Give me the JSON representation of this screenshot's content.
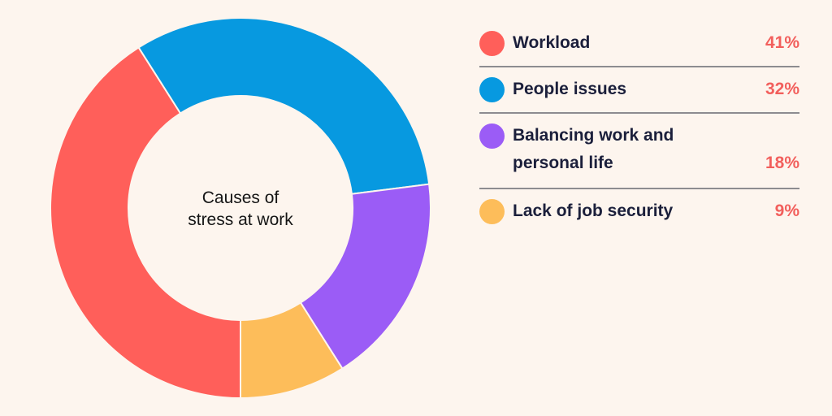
{
  "chart_data": {
    "type": "pie",
    "style": "donut",
    "title": "Causes of stress at work",
    "categories": [
      "Workload",
      "People issues",
      "Balancing work and personal life",
      "Lack of job security"
    ],
    "values": [
      41,
      32,
      18,
      9
    ],
    "value_labels": [
      "41%",
      "32%",
      "18%",
      "9%"
    ],
    "colors": [
      "#ff5f5a",
      "#0799e0",
      "#9b5cf6",
      "#fdbd5a"
    ],
    "start": "bottom",
    "direction": "clockwise",
    "legend": "right"
  },
  "center_text": {
    "line1": "Causes of",
    "line2": "stress at work"
  },
  "legend": {
    "items": [
      {
        "label": "Workload",
        "value": "41%"
      },
      {
        "label": "People issues",
        "value": "32%"
      },
      {
        "label_line1": "Balancing work and",
        "label_line2": "personal life",
        "value": "18%"
      },
      {
        "label": "Lack of job security",
        "value": "9%"
      }
    ]
  }
}
